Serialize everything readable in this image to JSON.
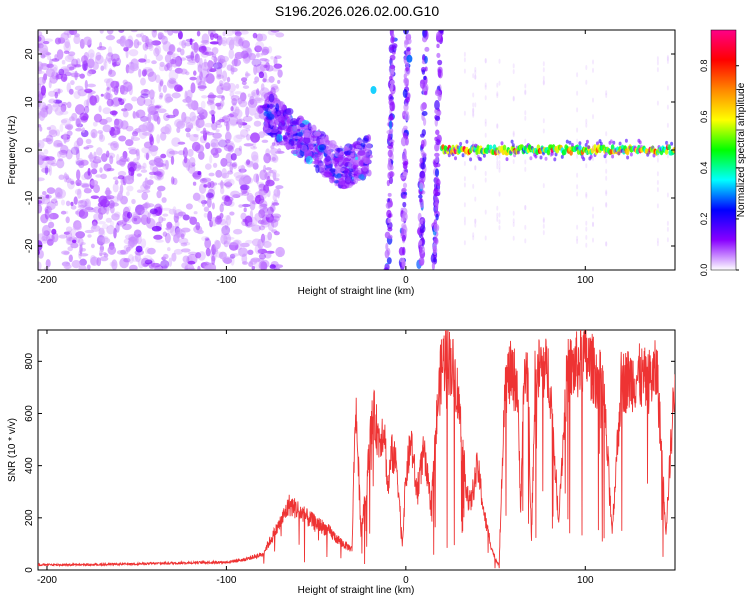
{
  "title": "S196.2026.026.02.00.G10",
  "chart_data": [
    {
      "type": "heatmap",
      "xlabel": "Height of straight line (km)",
      "ylabel": "Frequency (Hz)",
      "xlim": [
        -205,
        150
      ],
      "ylim": [
        -25,
        25
      ],
      "xticks": [
        -200,
        -100,
        0,
        100
      ],
      "yticks": [
        -20,
        -10,
        0,
        10,
        20
      ],
      "colorbar": {
        "label": "Normalized spectral amplitude",
        "range": [
          0,
          0.94
        ],
        "ticks": [
          "0.0",
          "0.2",
          "0.4",
          "0.6",
          "0.8"
        ],
        "tick_values": [
          0,
          0.2,
          0.4,
          0.6,
          0.8
        ],
        "colormap": [
          "#ffffff",
          "#8800ff",
          "#0000ff",
          "#00ffff",
          "#00ff00",
          "#ffff00",
          "#ff8800",
          "#ff0000",
          "#ff0088"
        ]
      },
      "features": [
        {
          "name": "scattered noise",
          "x": [
            -205,
            -75
          ],
          "freq": [
            -25,
            25
          ],
          "amplitude": 0.05
        },
        {
          "name": "descending band",
          "x": [
            -75,
            -20
          ],
          "freq": [
            -11,
            0
          ],
          "amplitude": 0.2
        },
        {
          "name": "near-vertical traces",
          "x": [
            -20,
            20
          ],
          "freq": [
            -25,
            25
          ],
          "amplitude": 0.3
        },
        {
          "name": "steady carrier",
          "x": [
            20,
            150
          ],
          "freq": [
            0,
            0
          ],
          "amplitude": 0.9
        }
      ]
    },
    {
      "type": "line",
      "xlabel": "Height of straight line (km)",
      "ylabel": "SNR (10 * v/v)",
      "xlim": [
        -205,
        150
      ],
      "ylim": [
        0,
        920
      ],
      "xticks": [
        -200,
        -100,
        0,
        100
      ],
      "yticks": [
        0,
        200,
        400,
        600,
        800
      ],
      "color": "#ee3333",
      "series": [
        {
          "x": [
            -205,
            -180,
            -160,
            -140,
            -120,
            -100,
            -90,
            -80,
            -75,
            -70,
            -65,
            -60,
            -55,
            -50,
            -45,
            -40,
            -35,
            -30,
            -28,
            -25,
            -22,
            -20,
            -18,
            -15,
            -12,
            -10,
            -8,
            -5,
            -2,
            0,
            3,
            6,
            10,
            14,
            18,
            20,
            22,
            25,
            28,
            30,
            33,
            36,
            40,
            44,
            48,
            50,
            52,
            55,
            58,
            62,
            64,
            66,
            68,
            70,
            72,
            75,
            80,
            85,
            90,
            95,
            100,
            105,
            110,
            115,
            120,
            125,
            130,
            135,
            140,
            145,
            150
          ],
          "y": [
            20,
            20,
            22,
            25,
            28,
            30,
            40,
            60,
            120,
            180,
            250,
            230,
            200,
            180,
            160,
            130,
            100,
            80,
            650,
            150,
            300,
            500,
            600,
            500,
            550,
            300,
            450,
            400,
            100,
            350,
            500,
            300,
            450,
            250,
            650,
            780,
            820,
            800,
            720,
            600,
            350,
            250,
            400,
            200,
            80,
            40,
            20,
            700,
            750,
            720,
            250,
            750,
            760,
            100,
            720,
            780,
            750,
            200,
            760,
            780,
            820,
            760,
            700,
            150,
            720,
            730,
            740,
            720,
            760,
            150,
            750
          ]
        }
      ]
    }
  ]
}
